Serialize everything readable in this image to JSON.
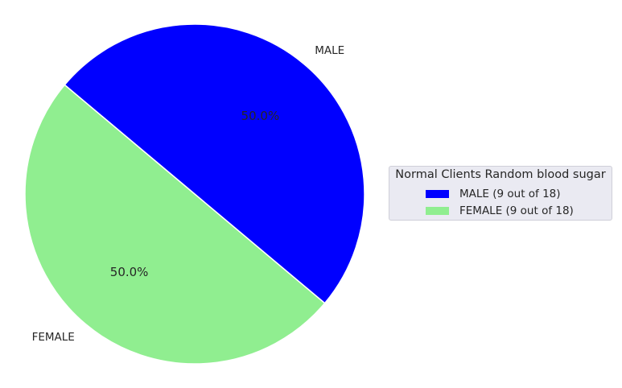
{
  "chart_data": {
    "type": "pie",
    "slices": [
      {
        "label": "FEMALE",
        "value": 9,
        "percent_label": "50.0%",
        "color": "#90ee90"
      },
      {
        "label": "MALE",
        "value": 9,
        "percent_label": "50.0%",
        "color": "#0000ff"
      }
    ],
    "total": 18,
    "start_angle_deg": 140,
    "direction": "counterclockwise",
    "legend": {
      "title": "Normal Clients Random blood sugar",
      "placement": "right",
      "entries": [
        {
          "label": "MALE (9 out of 18)",
          "color": "#0000ff"
        },
        {
          "label": "FEMALE (9 out of 18)",
          "color": "#90ee90"
        }
      ]
    }
  }
}
